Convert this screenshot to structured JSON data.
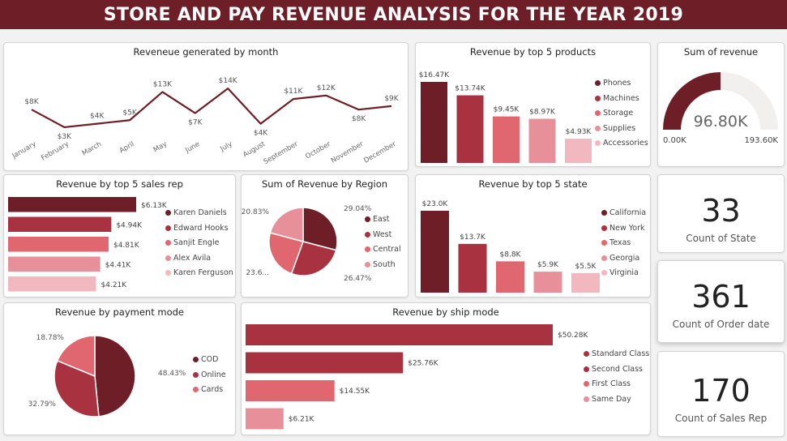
{
  "header": {
    "title": "STORE AND PAY REVENUE ANALYSIS FOR THE YEAR 2019"
  },
  "colors": {
    "banner": "#6e1e26",
    "palette": [
      "#6e1e26",
      "#a83240",
      "#e06670",
      "#e8909a",
      "#f2b8c0"
    ],
    "gauge_track": "#f1f0ef"
  },
  "kpis": {
    "state": {
      "value": "33",
      "label": "Count of State"
    },
    "order_date": {
      "value": "361",
      "label": "Count of Order date"
    },
    "sales_rep": {
      "value": "170",
      "label": "Count of Sales Rep"
    }
  },
  "chart_data": [
    {
      "id": "monthly",
      "type": "line",
      "title": "Reveneue generated by month",
      "categories": [
        "January",
        "February",
        "March",
        "April",
        "May",
        "June",
        "July",
        "August",
        "September",
        "October",
        "November",
        "December"
      ],
      "values": [
        8,
        3,
        4,
        5,
        13,
        7,
        14,
        4,
        11,
        12,
        8,
        9
      ],
      "data_labels": [
        "$8K",
        "$3K",
        "$4K",
        "$5K",
        "$13K",
        "$7K",
        "$14K",
        "$4K",
        "$11K",
        "$12K",
        "$8K",
        "$9K"
      ],
      "unit": "K",
      "ylim": [
        0,
        16
      ]
    },
    {
      "id": "products",
      "type": "bar",
      "title": "Revenue by top 5 products",
      "categories": [
        "Phones",
        "Machines",
        "Storage",
        "Supplies",
        "Accessories"
      ],
      "values": [
        16.47,
        13.74,
        9.45,
        8.97,
        4.93
      ],
      "data_labels": [
        "$16.47K",
        "$13.74K",
        "$9.45K",
        "$8.97K",
        "$4.93K"
      ],
      "legend": "right"
    },
    {
      "id": "gauge",
      "type": "gauge",
      "title": "Sum of revenue",
      "value": 96.8,
      "min": 0,
      "max": 193.6,
      "value_label": "96.80K",
      "min_label": "0.00K",
      "max_label": "193.60K"
    },
    {
      "id": "salesrep",
      "type": "bar",
      "orientation": "horizontal",
      "title": "Revenue by top 5 sales rep",
      "categories": [
        "Karen Daniels",
        "Edward Hooks",
        "Sanjit Engle",
        "Alex Avila",
        "Karen Ferguson"
      ],
      "values": [
        6.13,
        4.94,
        4.81,
        4.41,
        4.21
      ],
      "data_labels": [
        "$6.13K",
        "$4.94K",
        "$4.81K",
        "$4.41K",
        "$4.21K"
      ],
      "legend": "right"
    },
    {
      "id": "region",
      "type": "pie",
      "title": "Sum of Revenue by Region",
      "categories": [
        "East",
        "West",
        "Central",
        "South"
      ],
      "values": [
        29.04,
        26.47,
        23.6,
        20.83
      ],
      "data_labels": [
        "29.04%",
        "26.47%",
        "23.6...",
        "20.83%"
      ],
      "legend": "right"
    },
    {
      "id": "state",
      "type": "bar",
      "title": "Revenue by top 5 state",
      "categories": [
        "California",
        "New York",
        "Texas",
        "Georgia",
        "Virginia"
      ],
      "values": [
        23.0,
        13.7,
        8.8,
        5.9,
        5.5
      ],
      "data_labels": [
        "$23.0K",
        "$13.7K",
        "$8.8K",
        "$5.9K",
        "$5.5K"
      ],
      "legend": "right"
    },
    {
      "id": "payment",
      "type": "pie",
      "title": "Revenue by payment mode",
      "categories": [
        "COD",
        "Online",
        "Cards"
      ],
      "values": [
        48.43,
        32.79,
        18.78
      ],
      "data_labels": [
        "48.43%",
        "32.79%",
        "18.78%"
      ],
      "legend": "right"
    },
    {
      "id": "shipmode",
      "type": "bar",
      "orientation": "horizontal",
      "title": "Revenue by ship mode",
      "categories": [
        "Standard Class",
        "Second Class",
        "First Class",
        "Same Day"
      ],
      "values": [
        50.28,
        25.76,
        14.55,
        6.21
      ],
      "data_labels": [
        "$50.28K",
        "$25.76K",
        "$14.55K",
        "$6.21K"
      ],
      "legend": "right"
    }
  ]
}
